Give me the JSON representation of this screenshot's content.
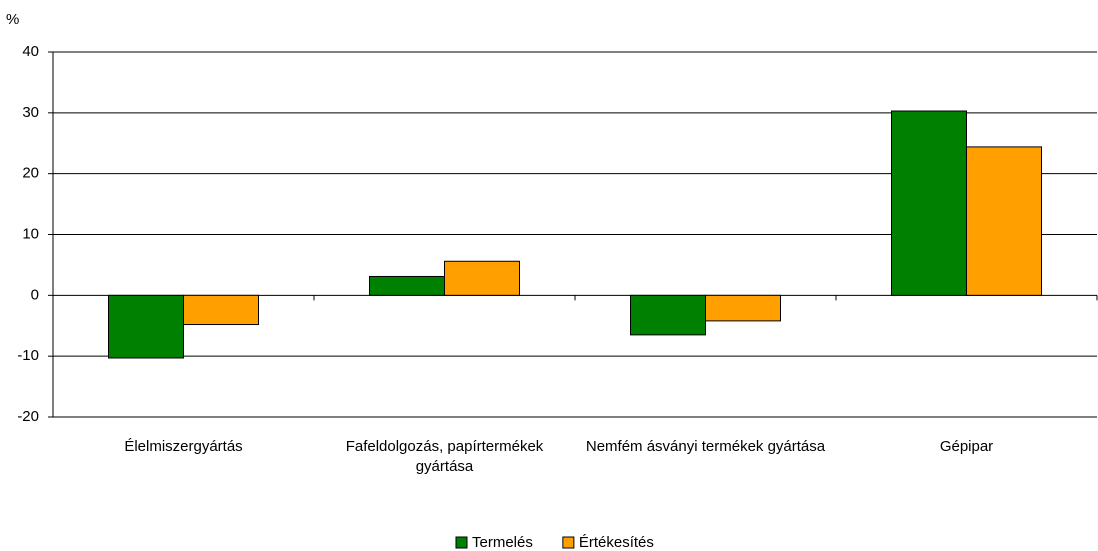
{
  "chart_data": {
    "type": "bar",
    "ylabel": "%",
    "categories": [
      "Élelmiszergyártás",
      "Fafeldolgozás, papírtermékek gyártása",
      "Nemfém ásványi termékek gyártása",
      "Gépipar"
    ],
    "series": [
      {
        "name": "Termelés",
        "color": "#008000",
        "values": [
          -10.3,
          3.1,
          -6.5,
          30.3
        ]
      },
      {
        "name": "Értékesítés",
        "color": "#ff9f00",
        "values": [
          -4.8,
          5.6,
          -4.2,
          24.4
        ]
      }
    ],
    "ylim": [
      -20,
      40
    ],
    "yticks": [
      -20,
      -10,
      0,
      10,
      20,
      30,
      40
    ],
    "grid": true
  }
}
